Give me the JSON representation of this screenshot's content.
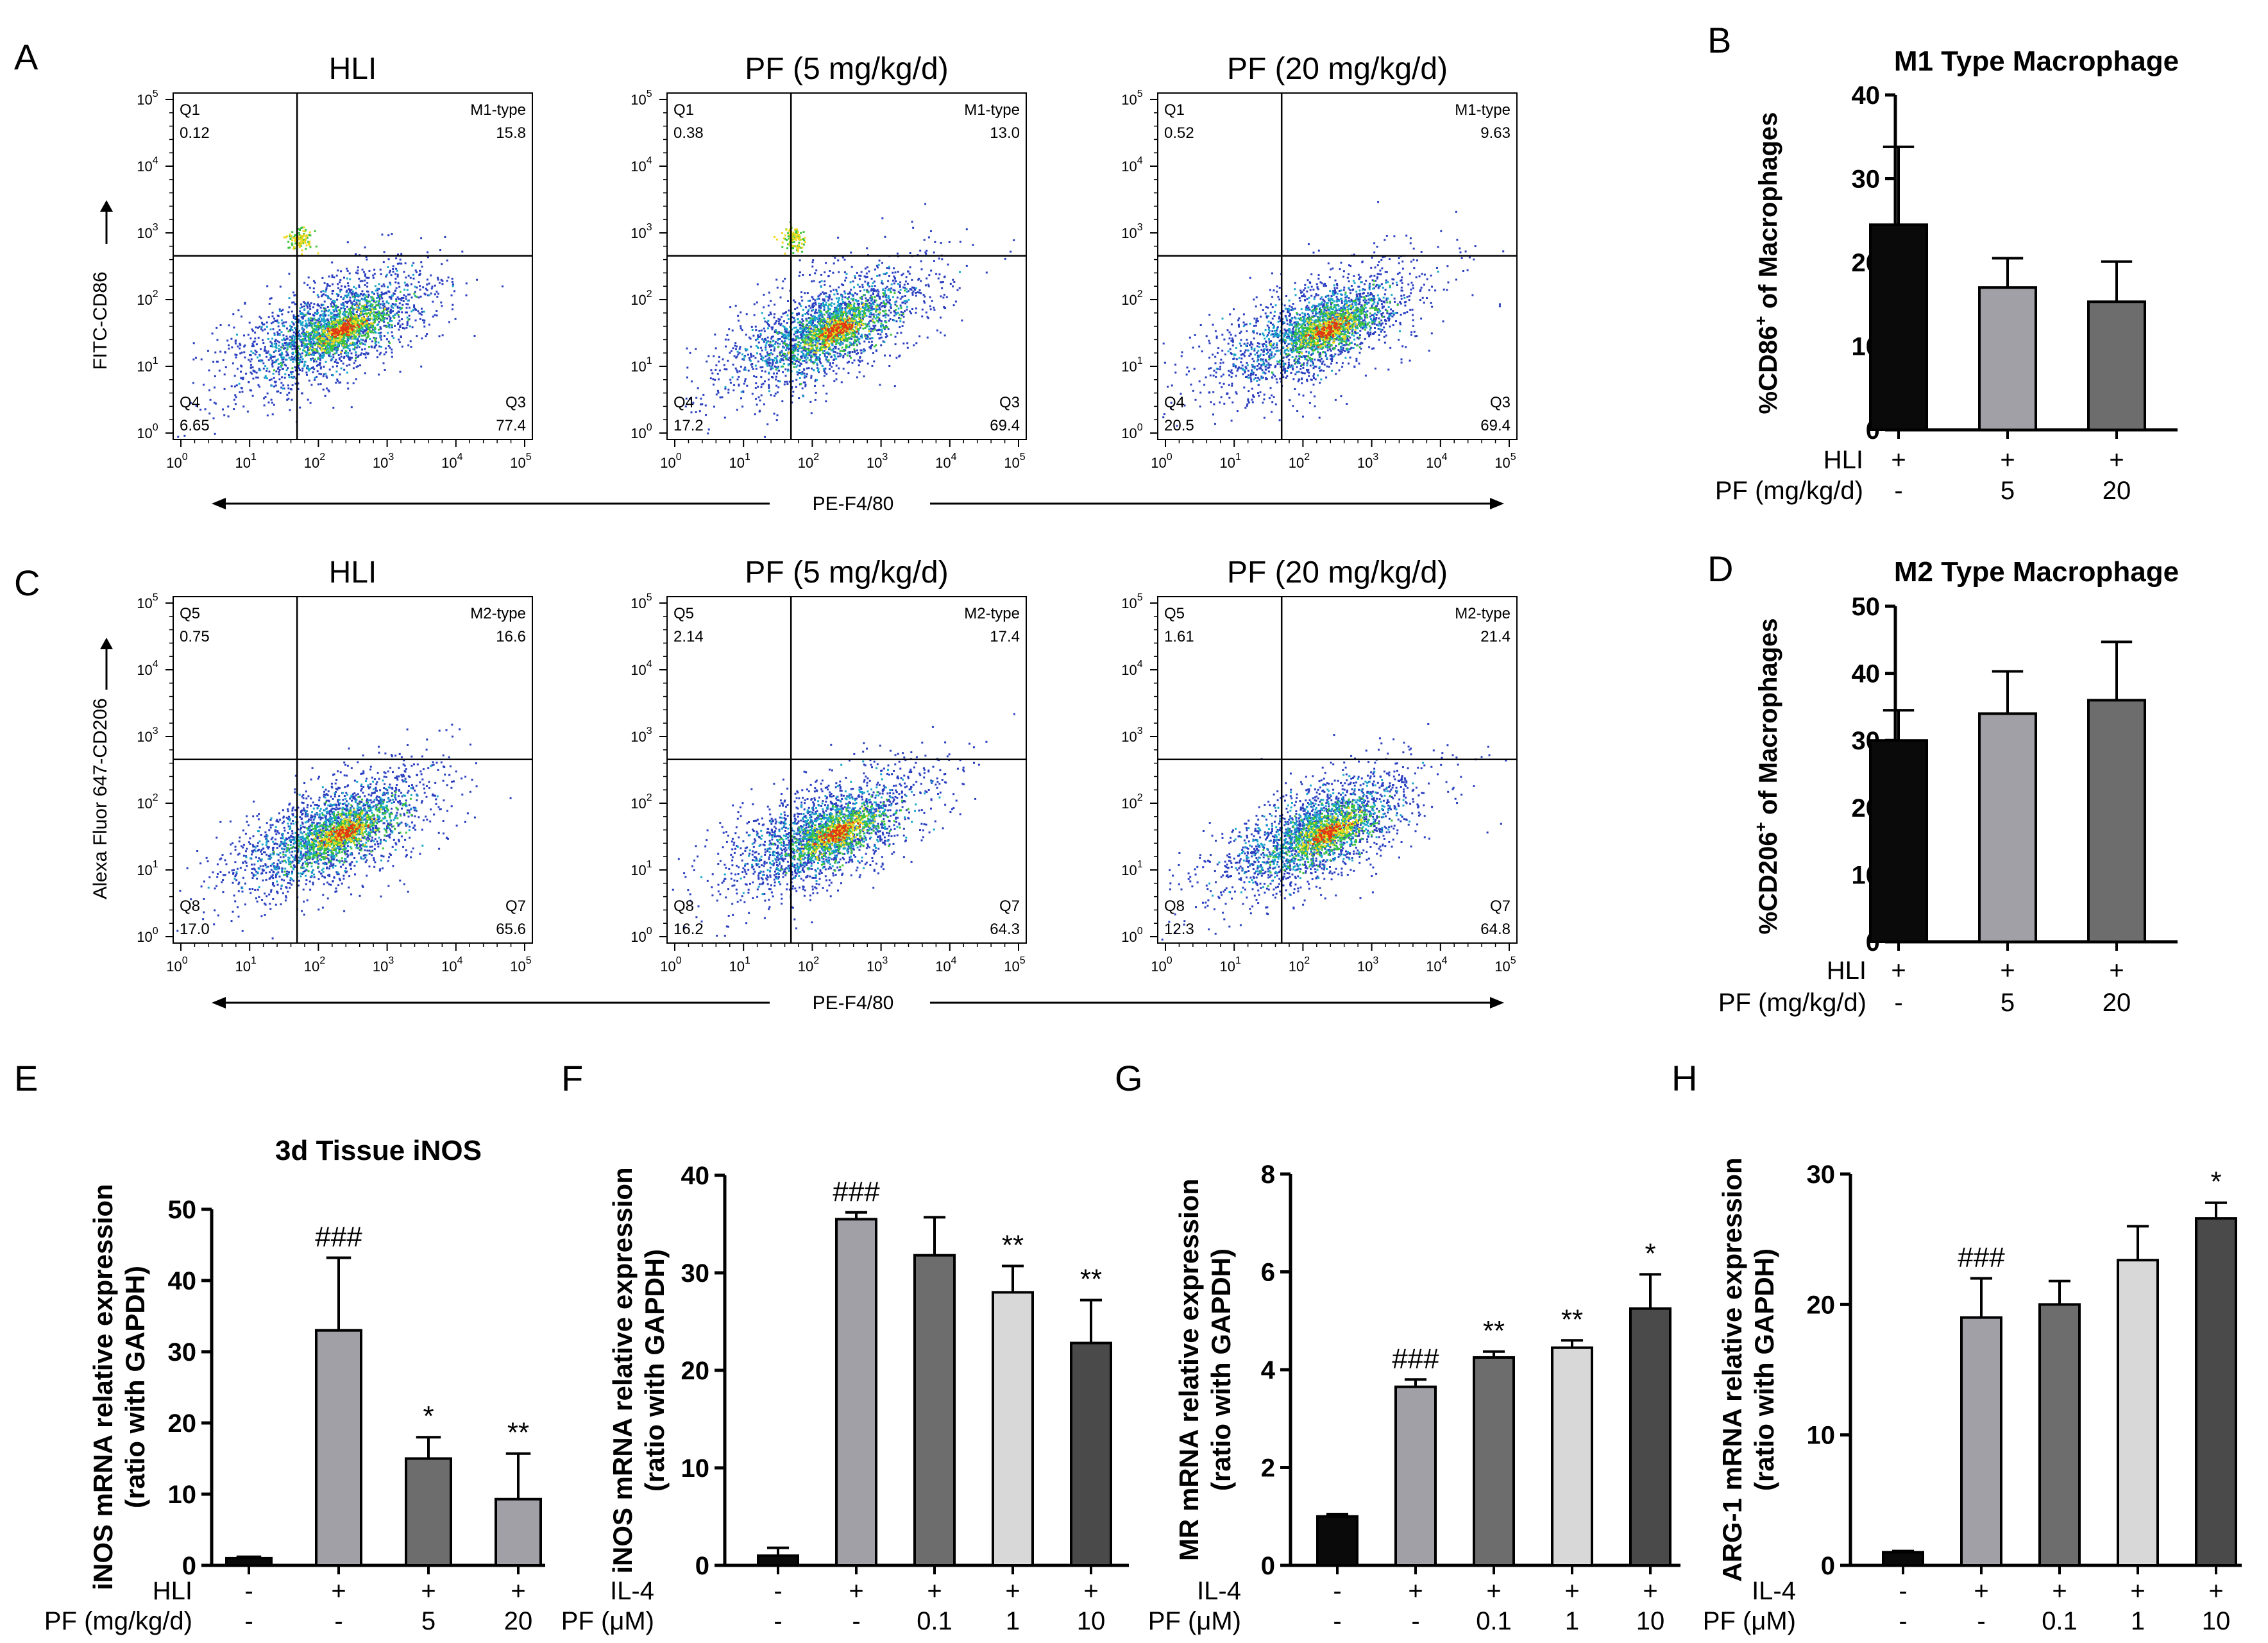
{
  "figure": {
    "panel_letters": {
      "A": "A",
      "B": "B",
      "C": "C",
      "D": "D",
      "E": "E",
      "F": "F",
      "G": "G",
      "H": "H"
    },
    "colors": {
      "black": "#0a0a0a",
      "gray_light": "#a0a0a6",
      "gray_mid": "#6d6d6d",
      "gray_pale": "#d8d8d8",
      "gray_dark": "#4a4a4a",
      "flow_blue": "#1f3fbf",
      "flow_cyan": "#19b8c8",
      "flow_green": "#38c13a",
      "flow_yellow": "#f2e21a",
      "flow_red": "#e02010"
    }
  },
  "chart_data": [
    {
      "id": "A",
      "type": "scatter",
      "subtype": "flow-cytometry",
      "x_axis_label": "PE-F4/80",
      "y_axis_label": "FITC-CD86",
      "tick_labels": [
        "10",
        "10",
        "10",
        "10",
        "10",
        "10"
      ],
      "tick_exponents": [
        "0",
        "1",
        "2",
        "3",
        "4",
        "5"
      ],
      "plots": [
        {
          "title": "HLI",
          "quadrants": {
            "ul": [
              "Q1",
              "0.12"
            ],
            "ur": [
              "M1-type",
              "15.8"
            ],
            "ll": [
              "Q4",
              "6.65"
            ],
            "lr": [
              "Q3",
              "77.4"
            ]
          }
        },
        {
          "title": "PF (5 mg/kg/d)",
          "quadrants": {
            "ul": [
              "Q1",
              "0.38"
            ],
            "ur": [
              "M1-type",
              "13.0"
            ],
            "ll": [
              "Q4",
              "17.2"
            ],
            "lr": [
              "Q3",
              "69.4"
            ]
          }
        },
        {
          "title": "PF (20 mg/kg/d)",
          "quadrants": {
            "ul": [
              "Q1",
              "0.52"
            ],
            "ur": [
              "M1-type",
              "9.63"
            ],
            "ll": [
              "Q4",
              "20.5"
            ],
            "lr": [
              "Q3",
              "69.4"
            ]
          }
        }
      ]
    },
    {
      "id": "C",
      "type": "scatter",
      "subtype": "flow-cytometry",
      "x_axis_label": "PE-F4/80",
      "y_axis_label": "Alexa Fluor 647-CD206",
      "tick_labels": [
        "10",
        "10",
        "10",
        "10",
        "10",
        "10"
      ],
      "tick_exponents": [
        "0",
        "1",
        "2",
        "3",
        "4",
        "5"
      ],
      "plots": [
        {
          "title": "HLI",
          "quadrants": {
            "ul": [
              "Q5",
              "0.75"
            ],
            "ur": [
              "M2-type",
              "16.6"
            ],
            "ll": [
              "Q8",
              "17.0"
            ],
            "lr": [
              "Q7",
              "65.6"
            ]
          }
        },
        {
          "title": "PF (5 mg/kg/d)",
          "quadrants": {
            "ul": [
              "Q5",
              "2.14"
            ],
            "ur": [
              "M2-type",
              "17.4"
            ],
            "ll": [
              "Q8",
              "16.2"
            ],
            "lr": [
              "Q7",
              "64.3"
            ]
          }
        },
        {
          "title": "PF (20 mg/kg/d)",
          "quadrants": {
            "ul": [
              "Q5",
              "1.61"
            ],
            "ur": [
              "M2-type",
              "21.4"
            ],
            "ll": [
              "Q8",
              "12.3"
            ],
            "lr": [
              "Q7",
              "64.8"
            ]
          }
        }
      ]
    },
    {
      "id": "B",
      "type": "bar",
      "title": "M1 Type Macrophage",
      "ylabel_main": "%CD86",
      "ylabel_sup": "+",
      "ylabel_rest": " of Macrophages",
      "ylim": [
        0,
        40
      ],
      "yticks": [
        "0",
        "10",
        "20",
        "30",
        "40"
      ],
      "values": [
        24.5,
        17.0,
        15.3
      ],
      "errors": [
        9.3,
        3.5,
        4.8
      ],
      "colors": [
        "#0a0a0a",
        "#a0a0a6",
        "#6d6d6d"
      ],
      "rows": [
        {
          "label": "HLI",
          "values": [
            "+",
            "+",
            "+"
          ]
        },
        {
          "label": "PF (mg/kg/d)",
          "values": [
            "-",
            "5",
            "20"
          ]
        }
      ],
      "annotations": [
        "",
        "",
        ""
      ]
    },
    {
      "id": "D",
      "type": "bar",
      "title": "M2 Type Macrophage",
      "ylabel_main": "%CD206",
      "ylabel_sup": "+",
      "ylabel_rest": " of Macrophages",
      "ylim": [
        0,
        50
      ],
      "yticks": [
        "0",
        "10",
        "20",
        "30",
        "40",
        "50"
      ],
      "values": [
        30.0,
        34.0,
        36.0
      ],
      "errors": [
        4.5,
        6.3,
        8.7
      ],
      "colors": [
        "#0a0a0a",
        "#a0a0a6",
        "#6d6d6d"
      ],
      "rows": [
        {
          "label": "HLI",
          "values": [
            "+",
            "+",
            "+"
          ]
        },
        {
          "label": "PF (mg/kg/d)",
          "values": [
            "-",
            "5",
            "20"
          ]
        }
      ],
      "annotations": [
        "",
        "",
        ""
      ]
    },
    {
      "id": "E",
      "type": "bar",
      "title": "3d Tissue iNOS",
      "ylabel_line1": "iNOS mRNA relative expression",
      "ylabel_line2": "(ratio with GAPDH)",
      "ylim": [
        0,
        50
      ],
      "yticks": [
        "0",
        "10",
        "20",
        "30",
        "40",
        "50"
      ],
      "values": [
        1.0,
        33.0,
        15.0,
        9.3
      ],
      "errors": [
        0.2,
        10.2,
        3.0,
        6.4
      ],
      "colors": [
        "#0a0a0a",
        "#a0a0a6",
        "#6d6d6d",
        "#a0a0a6"
      ],
      "rows": [
        {
          "label": "HLI",
          "values": [
            "-",
            "+",
            "+",
            "+"
          ]
        },
        {
          "label": "PF (mg/kg/d)",
          "values": [
            "-",
            "-",
            "5",
            "20"
          ]
        }
      ],
      "annotations": [
        "",
        "###",
        "*",
        "**"
      ]
    },
    {
      "id": "F",
      "type": "bar",
      "title": "",
      "ylabel_line1": "iNOS mRNA relative expression",
      "ylabel_line2": "(ratio with GAPDH)",
      "ylim": [
        0,
        40
      ],
      "yticks": [
        "0",
        "10",
        "20",
        "30",
        "40"
      ],
      "values": [
        1.0,
        35.5,
        31.8,
        28.0,
        22.8
      ],
      "errors": [
        0.8,
        0.7,
        3.9,
        2.7,
        4.4
      ],
      "colors": [
        "#0a0a0a",
        "#a0a0a6",
        "#6d6d6d",
        "#d8d8d8",
        "#4a4a4a"
      ],
      "rows": [
        {
          "label": "IL-4",
          "values": [
            "-",
            "+",
            "+",
            "+",
            "+"
          ]
        },
        {
          "label": "PF (μM)",
          "values": [
            "-",
            "-",
            "0.1",
            "1",
            "10"
          ]
        }
      ],
      "annotations": [
        "",
        "###",
        "",
        "**",
        "**"
      ]
    },
    {
      "id": "G",
      "type": "bar",
      "title": "",
      "ylabel_line1": "MR mRNA relative expression",
      "ylabel_line2": "(ratio with GAPDH)",
      "ylim": [
        0,
        8
      ],
      "yticks": [
        "0",
        "2",
        "4",
        "6",
        "8"
      ],
      "values": [
        1.0,
        3.65,
        4.25,
        4.45,
        5.25
      ],
      "errors": [
        0.05,
        0.15,
        0.12,
        0.15,
        0.7
      ],
      "colors": [
        "#0a0a0a",
        "#a0a0a6",
        "#6d6d6d",
        "#d8d8d8",
        "#4a4a4a"
      ],
      "rows": [
        {
          "label": "IL-4",
          "values": [
            "-",
            "+",
            "+",
            "+",
            "+"
          ]
        },
        {
          "label": "PF (μM)",
          "values": [
            "-",
            "-",
            "0.1",
            "1",
            "10"
          ]
        }
      ],
      "annotations": [
        "",
        "###",
        "**",
        "**",
        "*"
      ]
    },
    {
      "id": "H",
      "type": "bar",
      "title": "",
      "ylabel_line1": "ARG-1 mRNA relative expression",
      "ylabel_line2": "(ratio with GAPDH)",
      "ylim": [
        0,
        30
      ],
      "yticks": [
        "0",
        "10",
        "20",
        "30"
      ],
      "values": [
        1.0,
        19.0,
        20.0,
        23.4,
        26.6
      ],
      "errors": [
        0.1,
        3.0,
        1.8,
        2.6,
        1.2
      ],
      "colors": [
        "#0a0a0a",
        "#a0a0a6",
        "#6d6d6d",
        "#d8d8d8",
        "#4a4a4a"
      ],
      "rows": [
        {
          "label": "IL-4",
          "values": [
            "-",
            "+",
            "+",
            "+",
            "+"
          ]
        },
        {
          "label": "PF (μM)",
          "values": [
            "-",
            "-",
            "0.1",
            "1",
            "10"
          ]
        }
      ],
      "annotations": [
        "",
        "###",
        "",
        "",
        "*"
      ]
    }
  ]
}
